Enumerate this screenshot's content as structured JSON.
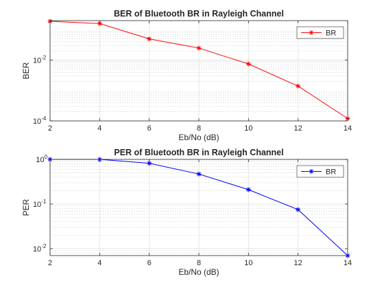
{
  "chart_data": [
    {
      "type": "line",
      "title": "BER of Bluetooth BR in Rayleigh Channel",
      "xlabel": "Eb/No (dB)",
      "ylabel": "BER",
      "xlim": [
        2,
        14
      ],
      "ylim": [
        0.0001,
        0.2
      ],
      "yscale": "log",
      "grid": true,
      "minor_grid": true,
      "legend_position": "top-right",
      "x_ticks": [
        "2",
        "4",
        "6",
        "8",
        "10",
        "12",
        "14"
      ],
      "y_ticks": [
        {
          "base": "10",
          "exp": "-4",
          "value": 0.0001
        },
        {
          "base": "10",
          "exp": "-2",
          "value": 0.01
        }
      ],
      "color": "#ff0000",
      "marker": "*",
      "series": [
        {
          "name": "BR",
          "x": [
            2,
            4,
            6,
            8,
            10,
            12,
            14
          ],
          "y": [
            0.19,
            0.16,
            0.05,
            0.025,
            0.0075,
            0.0014,
            0.00012
          ]
        }
      ]
    },
    {
      "type": "line",
      "title": "PER of Bluetooth BR in Rayleigh Channel",
      "xlabel": "Eb/No (dB)",
      "ylabel": "PER",
      "xlim": [
        2,
        14
      ],
      "ylim": [
        0.007,
        1.0
      ],
      "yscale": "log",
      "grid": true,
      "minor_grid": true,
      "legend_position": "top-right",
      "x_ticks": [
        "2",
        "4",
        "6",
        "8",
        "10",
        "12",
        "14"
      ],
      "y_ticks": [
        {
          "base": "10",
          "exp": "-2",
          "value": 0.01
        },
        {
          "base": "10",
          "exp": "-1",
          "value": 0.1
        },
        {
          "base": "10",
          "exp": "0",
          "value": 1
        }
      ],
      "color": "#0000ff",
      "marker": "*",
      "series": [
        {
          "name": "BR",
          "x": [
            2,
            4,
            6,
            8,
            10,
            12,
            14
          ],
          "y": [
            1.0,
            1.0,
            0.82,
            0.47,
            0.21,
            0.075,
            0.007
          ]
        }
      ]
    }
  ]
}
